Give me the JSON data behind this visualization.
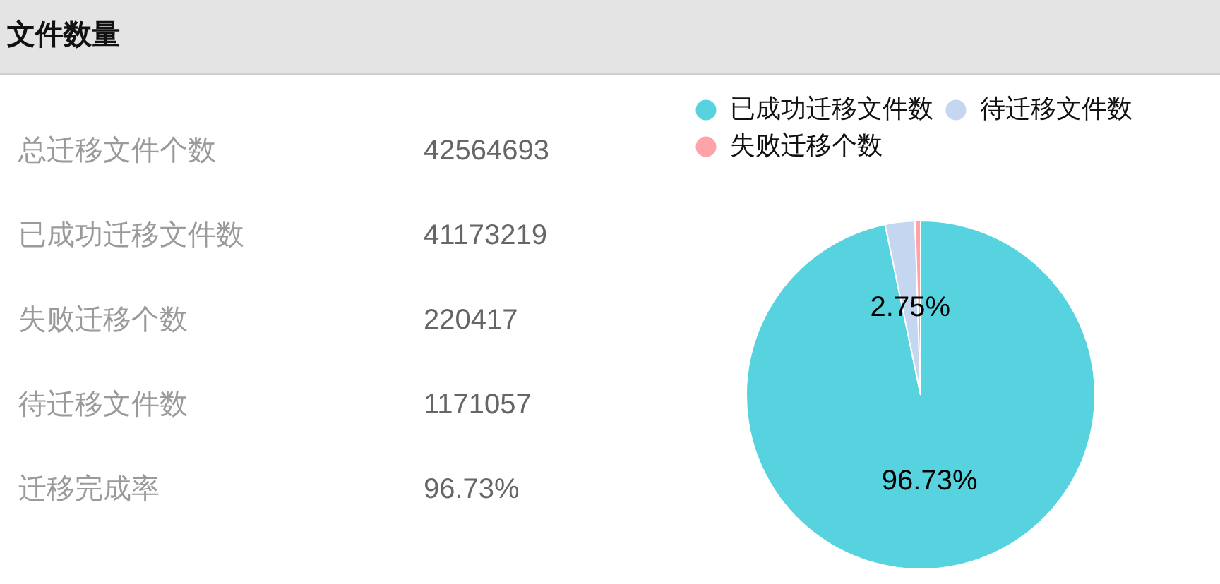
{
  "chart_data": [
    {
      "type": "other",
      "title": "文件数量",
      "annotations": [
        "总迁移文件个数",
        "42564693",
        "已成功迁移文件数",
        "41173219",
        "失败迁移个数",
        "220417",
        "待迁移文件数",
        "1171057",
        "迁移完成率",
        "96.73%"
      ]
    },
    {
      "type": "pie",
      "categories": [
        "已成功迁移文件数",
        "待迁移文件数",
        "失败迁移个数"
      ],
      "values": [
        96.73,
        2.75,
        0.52
      ],
      "colors": [
        "#56d3de",
        "#c5d6f0",
        "#ffa3a9"
      ],
      "value_labels": [
        "96.73%",
        "2.75%",
        null
      ],
      "legend": "top"
    }
  ]
}
